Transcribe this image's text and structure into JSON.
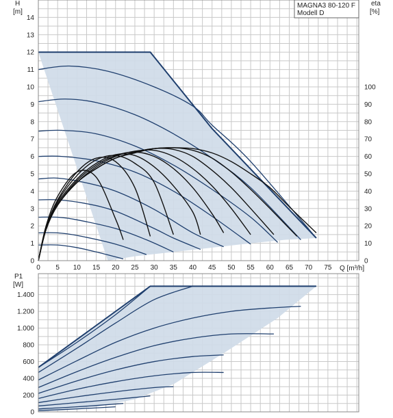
{
  "chart_data": [
    {
      "type": "line",
      "title": "",
      "legend": {
        "lines": [
          "MAGNA3 80-120 F",
          "Modell D"
        ],
        "placement": "top-right"
      },
      "ylabel": "H",
      "yunit": "[m]",
      "y2label": "eta",
      "y2unit": "[%]",
      "xlabel": "Q [m³/h]",
      "xlim": [
        0,
        83
      ],
      "ylim": [
        0,
        15
      ],
      "y2lim": [
        0,
        150
      ],
      "xticks": [
        0,
        5,
        10,
        15,
        20,
        25,
        30,
        35,
        40,
        45,
        50,
        55,
        60,
        65,
        70,
        75
      ],
      "yticks": [
        0,
        1,
        2,
        3,
        4,
        5,
        6,
        7,
        8,
        9,
        10,
        11,
        12,
        13,
        14
      ],
      "y2ticks": [
        0,
        10,
        20,
        30,
        40,
        50,
        60,
        70,
        80,
        90,
        100
      ],
      "grid": true,
      "envelope": [
        [
          0,
          12
        ],
        [
          29,
          12
        ],
        [
          45,
          7.6
        ],
        [
          72,
          1.3
        ],
        [
          64,
          1.2
        ],
        [
          55,
          1.0
        ],
        [
          45,
          0.75
        ],
        [
          35,
          0.5
        ],
        [
          25,
          0.25
        ],
        [
          18,
          0
        ]
      ],
      "head_series": [
        {
          "x": [
            0,
            8,
            18,
            30,
            40,
            45,
            55,
            72
          ],
          "y": [
            11.0,
            11.2,
            10.9,
            10.0,
            8.9,
            7.8,
            5.7,
            1.3
          ]
        },
        {
          "x": [
            0,
            7,
            15,
            25,
            35,
            45,
            55,
            68
          ],
          "y": [
            9.15,
            9.3,
            9.1,
            8.4,
            7.3,
            5.9,
            4.2,
            1.2
          ]
        },
        {
          "x": [
            0,
            6,
            15,
            25,
            35,
            45,
            55,
            62
          ],
          "y": [
            7.45,
            7.5,
            7.3,
            6.6,
            5.5,
            4.1,
            2.5,
            1.05
          ]
        },
        {
          "x": [
            0,
            6,
            15,
            25,
            35,
            45,
            55
          ],
          "y": [
            6.0,
            6.0,
            5.75,
            5.1,
            4.0,
            2.55,
            0.95
          ]
        },
        {
          "x": [
            0,
            5,
            12,
            20,
            30,
            40,
            48
          ],
          "y": [
            4.7,
            4.75,
            4.5,
            4.0,
            2.95,
            1.6,
            0.8
          ]
        },
        {
          "x": [
            0,
            5,
            12,
            20,
            30,
            35,
            42
          ],
          "y": [
            3.5,
            3.5,
            3.3,
            2.85,
            1.85,
            1.3,
            0.65
          ]
        },
        {
          "x": [
            0,
            5,
            10,
            20,
            28,
            35
          ],
          "y": [
            2.5,
            2.5,
            2.35,
            1.85,
            1.2,
            0.5
          ]
        },
        {
          "x": [
            0,
            5,
            10,
            20,
            28
          ],
          "y": [
            1.6,
            1.6,
            1.45,
            0.95,
            0.35
          ]
        },
        {
          "x": [
            0,
            5,
            10,
            15,
            22
          ],
          "y": [
            0.9,
            0.9,
            0.75,
            0.5,
            0.1
          ]
        }
      ],
      "eta_series": [
        {
          "x": [
            0,
            2,
            5,
            10,
            15,
            20,
            25,
            30,
            35,
            40,
            45,
            50,
            55,
            60,
            65,
            72
          ],
          "y": [
            0,
            18,
            32,
            45,
            53,
            59,
            62,
            64.5,
            65,
            64.5,
            62,
            57,
            50,
            42,
            31,
            16
          ]
        },
        {
          "x": [
            0,
            2,
            5,
            10,
            15,
            20,
            25,
            30,
            35,
            40,
            45,
            50,
            55,
            60,
            67
          ],
          "y": [
            0,
            18,
            32,
            45,
            53,
            59,
            62.5,
            64.5,
            65,
            63.5,
            59,
            51,
            41,
            30,
            14
          ]
        },
        {
          "x": [
            0,
            2,
            5,
            10,
            15,
            20,
            25,
            30,
            35,
            40,
            45,
            50,
            55,
            61
          ],
          "y": [
            0,
            18,
            32,
            45,
            53,
            59,
            62.5,
            64.5,
            64,
            60,
            52,
            42,
            30,
            15
          ]
        },
        {
          "x": [
            0,
            2,
            5,
            10,
            15,
            20,
            25,
            30,
            35,
            40,
            45,
            50,
            55
          ],
          "y": [
            0,
            18,
            32,
            45,
            54,
            60,
            63,
            63.5,
            60,
            53,
            43,
            30,
            15
          ]
        },
        {
          "x": [
            0,
            2,
            5,
            10,
            15,
            20,
            25,
            30,
            35,
            40,
            45,
            48
          ],
          "y": [
            0,
            18,
            32,
            46,
            55,
            60.5,
            62.5,
            60,
            53,
            42,
            27,
            16
          ]
        },
        {
          "x": [
            0,
            2,
            5,
            10,
            15,
            20,
            25,
            30,
            35,
            40,
            42
          ],
          "y": [
            0,
            18,
            33,
            47,
            56,
            61,
            60.5,
            54,
            43,
            28,
            15
          ]
        },
        {
          "x": [
            0,
            2,
            5,
            10,
            15,
            20,
            25,
            30,
            35
          ],
          "y": [
            0,
            18,
            34,
            49,
            58,
            60.5,
            56,
            45,
            15
          ]
        },
        {
          "x": [
            0,
            2,
            5,
            10,
            15,
            20,
            25,
            29
          ],
          "y": [
            0,
            19,
            35,
            51,
            59,
            57,
            42,
            14
          ]
        },
        {
          "x": [
            0,
            2,
            5,
            10,
            15,
            20,
            22
          ],
          "y": [
            0,
            20,
            37,
            51,
            48,
            24,
            12
          ]
        }
      ]
    },
    {
      "type": "line",
      "title": "",
      "ylabel": "P1",
      "yunit": "[W]",
      "xlim": [
        0,
        83
      ],
      "ylim": [
        0,
        1650
      ],
      "yticks": [
        0,
        200,
        400,
        600,
        800,
        1000,
        1200,
        1400
      ],
      "yticklabels": [
        "0",
        "200",
        "400",
        "600",
        "800",
        "1.000",
        "1.200",
        "1.400"
      ],
      "grid": true,
      "envelope": [
        [
          0,
          530
        ],
        [
          29,
          1500
        ],
        [
          72,
          1500
        ],
        [
          62,
          1120
        ],
        [
          48,
          700
        ],
        [
          35,
          330
        ],
        [
          25,
          150
        ],
        [
          15,
          60
        ],
        [
          5,
          15
        ],
        [
          0,
          0
        ]
      ],
      "power_series": [
        {
          "x": [
            0,
            10,
            20,
            29
          ],
          "y": [
            530,
            830,
            1160,
            1500
          ]
        },
        {
          "x": [
            0,
            10,
            20,
            30,
            40
          ],
          "y": [
            470,
            760,
            1060,
            1340,
            1500
          ]
        },
        {
          "x": [
            0,
            10,
            20,
            30,
            40,
            50,
            60,
            68
          ],
          "y": [
            380,
            610,
            830,
            1000,
            1120,
            1200,
            1240,
            1260
          ]
        },
        {
          "x": [
            0,
            10,
            20,
            30,
            40,
            50,
            61
          ],
          "y": [
            290,
            480,
            650,
            790,
            880,
            930,
            930
          ]
        },
        {
          "x": [
            0,
            10,
            20,
            30,
            40,
            48
          ],
          "y": [
            220,
            370,
            500,
            600,
            660,
            680
          ]
        },
        {
          "x": [
            0,
            10,
            20,
            30,
            40,
            48
          ],
          "y": [
            160,
            270,
            360,
            430,
            470,
            470
          ]
        },
        {
          "x": [
            0,
            10,
            20,
            30,
            35
          ],
          "y": [
            110,
            180,
            240,
            290,
            300
          ]
        },
        {
          "x": [
            0,
            10,
            20,
            29
          ],
          "y": [
            70,
            110,
            150,
            190
          ]
        },
        {
          "x": [
            0,
            10,
            22
          ],
          "y": [
            35,
            60,
            100
          ]
        },
        {
          "x": [
            0,
            10,
            20
          ],
          "y": [
            15,
            35,
            60
          ]
        }
      ]
    }
  ]
}
